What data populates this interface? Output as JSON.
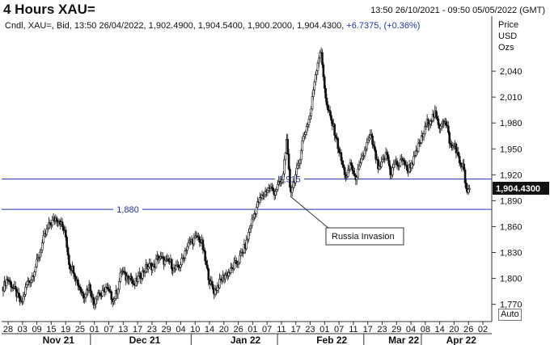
{
  "header": {
    "title": "4 Hours XAU=",
    "range": "13:50 26/10/2021 - 09:50 05/05/2022 (GMT)",
    "info": "Cndl, XAU=, Bid, 13:50 26/04/2022, 1,902.4900, 1,904.5400, 1,900.2000, 1,904.4300, ",
    "change": "+6.7375, (+0.36%)"
  },
  "axis_units": "Price\nUSD\nOzs",
  "auto_label": "Auto",
  "chart_data": {
    "type": "candlestick",
    "ylim": [
      1750,
      2085
    ],
    "yticks": [
      1770,
      1800,
      1830,
      1860,
      1890,
      1920,
      1950,
      1980,
      2010,
      2040
    ],
    "ytick_labels": [
      "1,770",
      "1,800",
      "1,830",
      "1,860",
      "1,890",
      "1,920",
      "1,950",
      "1,980",
      "2,010",
      "2,040"
    ],
    "xtick_labels": [
      "28",
      "03",
      "09",
      "15",
      "19",
      "25",
      "01",
      "07",
      "13",
      "17",
      "23",
      "29",
      "04",
      "10",
      "14",
      "20",
      "26",
      "01",
      "07",
      "11",
      "17",
      "23",
      "01",
      "07",
      "11",
      "17",
      "23",
      "29",
      "04",
      "08",
      "14",
      "20",
      "26",
      "02"
    ],
    "month_labels": [
      "Nov 21",
      "Dec 21",
      "Jan 22",
      "Feb 22",
      "Mar 22",
      "Apr 22"
    ],
    "current_value": 1904.43,
    "current_label": "1,904.4300",
    "levels": [
      {
        "label": "1,915",
        "value": 1915,
        "color": "#2233aa"
      },
      {
        "label": "1,880",
        "value": 1880,
        "color": "#2233aa"
      }
    ],
    "annotation": "Russia Invasion",
    "price_path": [
      [
        0,
        1790
      ],
      [
        2,
        1800
      ],
      [
        6,
        1785
      ],
      [
        9,
        1770
      ],
      [
        12,
        1795
      ],
      [
        14,
        1800
      ],
      [
        17,
        1820
      ],
      [
        20,
        1845
      ],
      [
        23,
        1862
      ],
      [
        26,
        1870
      ],
      [
        28,
        1868
      ],
      [
        31,
        1850
      ],
      [
        33,
        1815
      ],
      [
        35,
        1810
      ],
      [
        37,
        1795
      ],
      [
        40,
        1780
      ],
      [
        43,
        1792
      ],
      [
        45,
        1770
      ],
      [
        47,
        1785
      ],
      [
        49,
        1780
      ],
      [
        51,
        1790
      ],
      [
        53,
        1782
      ],
      [
        55,
        1775
      ],
      [
        57,
        1788
      ],
      [
        59,
        1810
      ],
      [
        61,
        1800
      ],
      [
        63,
        1805
      ],
      [
        65,
        1790
      ],
      [
        67,
        1800
      ],
      [
        69,
        1805
      ],
      [
        71,
        1812
      ],
      [
        73,
        1815
      ],
      [
        75,
        1813
      ],
      [
        77,
        1825
      ],
      [
        79,
        1822
      ],
      [
        81,
        1818
      ],
      [
        83,
        1820
      ],
      [
        85,
        1810
      ],
      [
        87,
        1812
      ],
      [
        89,
        1820
      ],
      [
        91,
        1835
      ],
      [
        93,
        1842
      ],
      [
        95,
        1845
      ],
      [
        97,
        1848
      ],
      [
        99,
        1840
      ],
      [
        101,
        1815
      ],
      [
        103,
        1795
      ],
      [
        105,
        1785
      ],
      [
        107,
        1792
      ],
      [
        109,
        1800
      ],
      [
        111,
        1805
      ],
      [
        113,
        1808
      ],
      [
        115,
        1815
      ],
      [
        117,
        1820
      ],
      [
        119,
        1830
      ],
      [
        121,
        1840
      ],
      [
        123,
        1860
      ],
      [
        125,
        1875
      ],
      [
        127,
        1888
      ],
      [
        129,
        1895
      ],
      [
        131,
        1902
      ],
      [
        133,
        1905
      ],
      [
        135,
        1900
      ],
      [
        137,
        1908
      ],
      [
        139,
        1912
      ],
      [
        141,
        1960
      ],
      [
        143,
        1900
      ],
      [
        145,
        1915
      ],
      [
        147,
        1930
      ],
      [
        149,
        1960
      ],
      [
        151,
        1975
      ],
      [
        153,
        1990
      ],
      [
        155,
        2030
      ],
      [
        157,
        2055
      ],
      [
        158,
        2065
      ],
      [
        159,
        2045
      ],
      [
        161,
        2000
      ],
      [
        163,
        1985
      ],
      [
        165,
        1970
      ],
      [
        167,
        1950
      ],
      [
        169,
        1930
      ],
      [
        171,
        1915
      ],
      [
        173,
        1935
      ],
      [
        175,
        1915
      ],
      [
        177,
        1925
      ],
      [
        179,
        1940
      ],
      [
        181,
        1955
      ],
      [
        183,
        1965
      ],
      [
        185,
        1945
      ],
      [
        187,
        1925
      ],
      [
        189,
        1935
      ],
      [
        191,
        1945
      ],
      [
        193,
        1920
      ],
      [
        195,
        1935
      ],
      [
        197,
        1930
      ],
      [
        199,
        1940
      ],
      [
        201,
        1925
      ],
      [
        203,
        1932
      ],
      [
        205,
        1940
      ],
      [
        207,
        1955
      ],
      [
        209,
        1965
      ],
      [
        211,
        1980
      ],
      [
        213,
        1985
      ],
      [
        215,
        1990
      ],
      [
        217,
        1975
      ],
      [
        219,
        1985
      ],
      [
        221,
        1975
      ],
      [
        223,
        1950
      ],
      [
        225,
        1955
      ],
      [
        227,
        1935
      ],
      [
        229,
        1930
      ],
      [
        231,
        1895
      ],
      [
        232,
        1904
      ]
    ]
  }
}
